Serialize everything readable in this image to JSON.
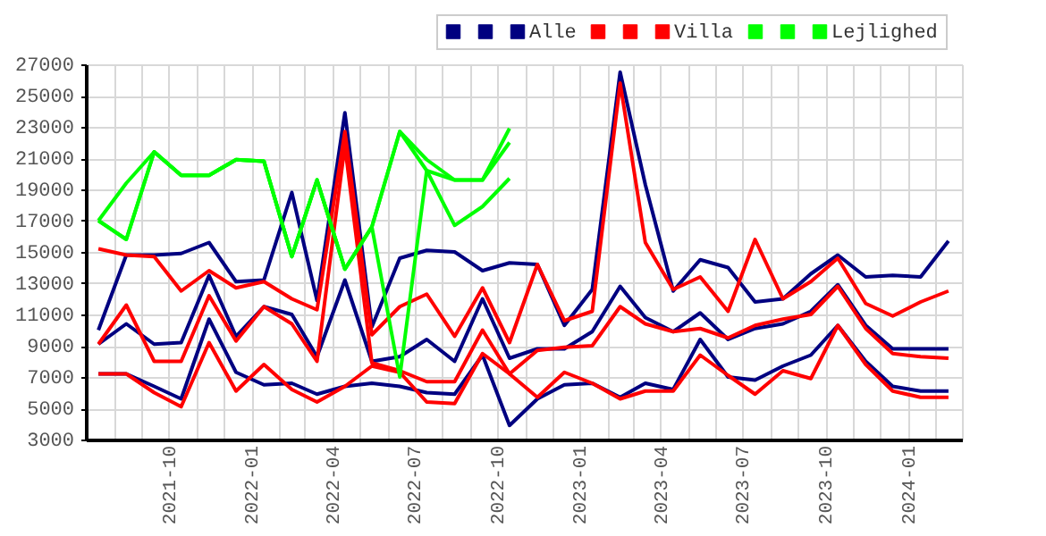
{
  "chart_data": {
    "type": "line",
    "x": [
      "2021-07-15",
      "2021-08-15",
      "2021-09-15",
      "2021-10-15",
      "2021-11-15",
      "2021-12-15",
      "2022-01-15",
      "2022-02-15",
      "2022-03-15",
      "2022-04-15",
      "2022-05-15",
      "2022-06-15",
      "2022-07-15",
      "2022-08-15",
      "2022-09-15",
      "2022-10-15",
      "2022-11-15",
      "2022-12-15",
      "2023-01-15",
      "2023-02-15",
      "2023-03-15",
      "2023-04-15",
      "2023-05-15",
      "2023-06-15",
      "2023-07-15",
      "2023-08-15",
      "2023-09-15",
      "2023-10-15",
      "2023-11-15",
      "2023-12-15",
      "2024-01-15",
      "2024-02-15"
    ],
    "series": [
      {
        "color": "#000080",
        "values": [
          10000,
          14800,
          14800,
          14900,
          15600,
          13100,
          13200,
          18800,
          11900,
          23900,
          10200,
          14600,
          15100,
          15000,
          13800,
          14300,
          14200,
          10300,
          12600,
          26500,
          19300,
          12500,
          14500,
          14000,
          11800,
          12000,
          13600,
          14800,
          13400,
          13500,
          13400,
          15700
        ]
      },
      {
        "color": "#000080",
        "values": [
          9100,
          10400,
          9100,
          9200,
          13500,
          9600,
          11500,
          11000,
          8300,
          13200,
          8000,
          8300,
          9400,
          8000,
          12000,
          8200,
          8800,
          8800,
          9900,
          12800,
          10800,
          9900,
          11100,
          9400,
          10100,
          10400,
          11200,
          12900,
          10300,
          8800,
          8800,
          8800
        ]
      },
      {
        "name": "Alle",
        "color": "#000080",
        "values": [
          7200,
          7200,
          6400,
          5600,
          10700,
          7300,
          6500,
          6600,
          5900,
          6400,
          6600,
          6400,
          6000,
          5900,
          8400,
          3900,
          5600,
          6500,
          6600,
          5700,
          6600,
          6200,
          9400,
          7000,
          6800,
          7700,
          8400,
          10300,
          8000,
          6400,
          6100,
          6100
        ]
      },
      {
        "color": "#ff0000",
        "values": [
          15200,
          14800,
          14700,
          12500,
          13800,
          12700,
          13100,
          12000,
          11300,
          22700,
          9700,
          11500,
          12300,
          9600,
          12700,
          9200,
          14200,
          10600,
          11200,
          25800,
          15600,
          12600,
          13400,
          11200,
          15800,
          12000,
          13100,
          14600,
          11700,
          10900,
          11800,
          12500
        ]
      },
      {
        "color": "#ff0000",
        "values": [
          9100,
          11600,
          8000,
          8000,
          12200,
          9300,
          11500,
          10400,
          8000,
          21800,
          7900,
          7400,
          6700,
          6700,
          10000,
          7200,
          8700,
          8900,
          9000,
          11500,
          10400,
          9900,
          10100,
          9500,
          10300,
          10700,
          11000,
          12800,
          10100,
          8500,
          8300,
          8200
        ]
      },
      {
        "name": "Villa",
        "color": "#ff0000",
        "values": [
          7200,
          7200,
          6000,
          5100,
          9200,
          6100,
          7800,
          6200,
          5400,
          6400,
          7700,
          7300,
          5400,
          5300,
          8500,
          7200,
          5700,
          7300,
          6600,
          5600,
          6100,
          6100,
          8400,
          7100,
          5900,
          7400,
          6900,
          10300,
          7800,
          6100,
          5700,
          5700
        ]
      },
      {
        "color": "#00ff00",
        "values": [
          17000,
          19400,
          21400,
          19900,
          19900,
          20900,
          20800,
          14700,
          19600,
          13900,
          16600,
          22700,
          20900,
          19600,
          19600,
          22900,
          null,
          null,
          null,
          null,
          null,
          null,
          null,
          null,
          null,
          null,
          null,
          null,
          null,
          null,
          null,
          null
        ]
      },
      {
        "color": "#00ff00",
        "values": [
          17000,
          15800,
          21400,
          19900,
          19900,
          20900,
          20800,
          14700,
          19600,
          13900,
          16600,
          7000,
          20200,
          19600,
          19600,
          22000,
          null,
          null,
          null,
          null,
          null,
          null,
          null,
          null,
          null,
          null,
          null,
          null,
          null,
          null,
          null,
          null
        ]
      },
      {
        "name": "Lejlighed",
        "color": "#00ff00",
        "values": [
          17000,
          15800,
          21400,
          19900,
          19900,
          20900,
          20800,
          14700,
          19600,
          13900,
          16600,
          22700,
          20200,
          16700,
          17900,
          19700,
          null,
          null,
          null,
          null,
          null,
          null,
          null,
          null,
          null,
          null,
          null,
          null,
          null,
          null,
          null,
          null
        ]
      }
    ],
    "xlim": [
      "2021-07",
      "2024-03"
    ],
    "xticks": [
      {
        "value": "2021-08",
        "label": null
      },
      {
        "value": "2021-09",
        "label": null
      },
      "2021-10",
      {
        "value": "2021-11",
        "label": null
      },
      {
        "value": "2021-12",
        "label": null
      },
      "2022-01",
      {
        "value": "2022-02",
        "label": null
      },
      {
        "value": "2022-03",
        "label": null
      },
      "2022-04",
      {
        "value": "2022-05",
        "label": null
      },
      {
        "value": "2022-06",
        "label": null
      },
      "2022-07",
      {
        "value": "2022-08",
        "label": null
      },
      {
        "value": "2022-09",
        "label": null
      },
      "2022-10",
      {
        "value": "2022-11",
        "label": null
      },
      {
        "value": "2022-12",
        "label": null
      },
      "2023-01",
      {
        "value": "2023-02",
        "label": null
      },
      {
        "value": "2023-03",
        "label": null
      },
      "2023-04",
      {
        "value": "2023-05",
        "label": null
      },
      {
        "value": "2023-06",
        "label": null
      },
      "2023-07",
      {
        "value": "2023-08",
        "label": null
      },
      {
        "value": "2023-09",
        "label": null
      },
      "2023-10",
      {
        "value": "2023-11",
        "label": null
      },
      {
        "value": "2023-12",
        "label": null
      },
      "2024-01",
      {
        "value": "2024-02",
        "label": null
      },
      {
        "value": "2024-03",
        "label": null
      }
    ],
    "ylim": [
      3000,
      27000
    ],
    "yticks": [
      3000,
      5000,
      7000,
      9000,
      11000,
      13000,
      15000,
      17000,
      19000,
      21000,
      23000,
      25000,
      27000
    ],
    "grid": true,
    "legend": "top right"
  }
}
